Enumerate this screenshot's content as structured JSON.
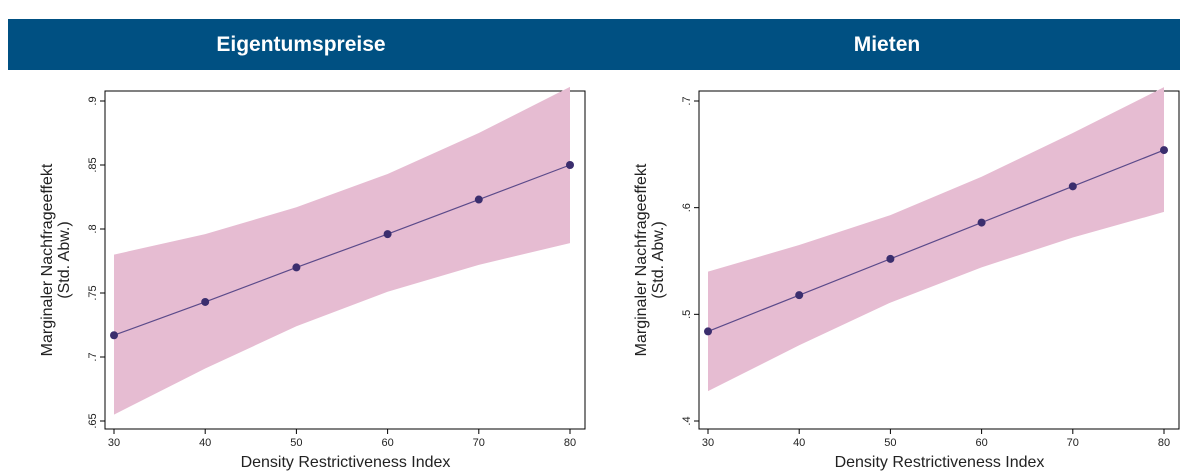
{
  "header": {
    "left_title": "Eigentumspreise",
    "right_title": "Mieten",
    "background_color": "#005082",
    "text_color": "#ffffff"
  },
  "style": {
    "band_color": "#e6bcd2",
    "line_color": "#5b4a8a",
    "point_color": "#3b2e6e"
  },
  "chart_data": [
    {
      "type": "line",
      "title": "Eigentumspreise",
      "xlabel": "Density Restrictiveness Index",
      "ylabel": "Marginaler Nachfrageeffekt",
      "ylabel2": "(Std. Abw.)",
      "x": [
        30,
        40,
        50,
        60,
        70,
        80
      ],
      "series": [
        {
          "values": [
            0.717,
            0.743,
            0.77,
            0.796,
            0.823,
            0.85
          ],
          "ci_lower": [
            0.655,
            0.691,
            0.724,
            0.751,
            0.772,
            0.789
          ],
          "ci_upper": [
            0.78,
            0.796,
            0.817,
            0.843,
            0.875,
            0.911
          ]
        }
      ],
      "xlim": [
        30,
        80
      ],
      "ylim": [
        0.65,
        0.9
      ],
      "x_ticks": [
        30,
        40,
        50,
        60,
        70,
        80
      ],
      "x_tick_labels": [
        "30",
        "40",
        "50",
        "60",
        "70",
        "80"
      ],
      "y_ticks": [
        0.65,
        0.7,
        0.75,
        0.8,
        0.85,
        0.9
      ],
      "y_tick_labels": [
        ".65",
        ".7",
        ".75",
        ".8",
        ".85",
        ".9"
      ],
      "grid": false
    },
    {
      "type": "line",
      "title": "Mieten",
      "xlabel": "Density Restrictiveness Index",
      "ylabel": "Marginaler Nachfrageeffekt",
      "ylabel2": "(Std. Abw.)",
      "x": [
        30,
        40,
        50,
        60,
        70,
        80
      ],
      "series": [
        {
          "values": [
            0.484,
            0.518,
            0.552,
            0.586,
            0.62,
            0.654
          ],
          "ci_lower": [
            0.428,
            0.471,
            0.511,
            0.544,
            0.572,
            0.596
          ],
          "ci_upper": [
            0.54,
            0.565,
            0.593,
            0.629,
            0.67,
            0.713
          ]
        }
      ],
      "xlim": [
        30,
        80
      ],
      "ylim": [
        0.4,
        0.7
      ],
      "x_ticks": [
        30,
        40,
        50,
        60,
        70,
        80
      ],
      "x_tick_labels": [
        "30",
        "40",
        "50",
        "60",
        "70",
        "80"
      ],
      "y_ticks": [
        0.4,
        0.5,
        0.6,
        0.7
      ],
      "y_tick_labels": [
        ".4",
        ".5",
        ".6",
        ".7"
      ],
      "grid": false
    }
  ]
}
